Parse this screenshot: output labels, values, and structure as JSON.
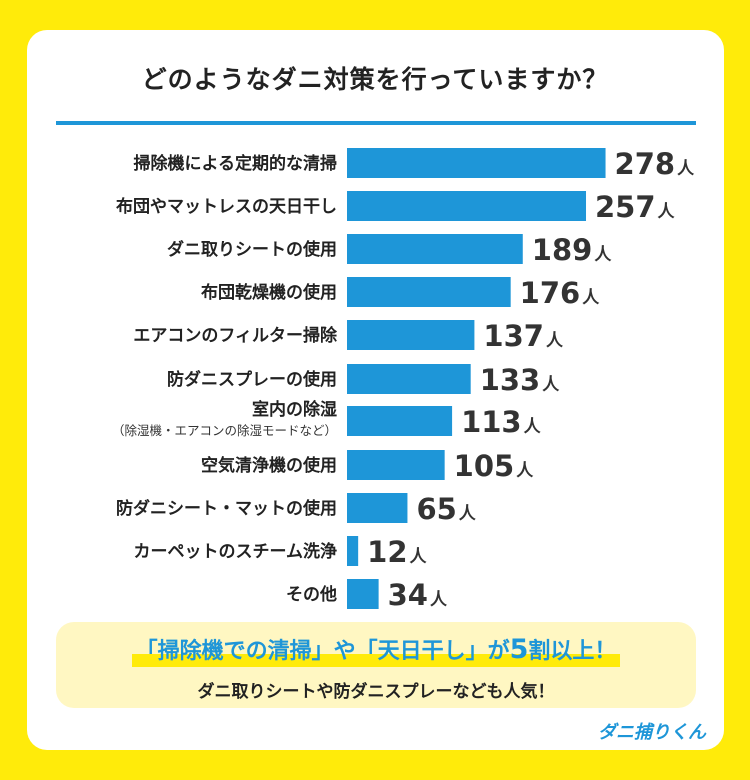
{
  "chart_data": {
    "type": "bar",
    "orientation": "horizontal",
    "title": "どのようなダニ対策を行っていますか？",
    "unit": "人",
    "categories": [
      {
        "label": "掃除機による定期的な清掃",
        "sublabel": ""
      },
      {
        "label": "布団やマットレスの天日干し",
        "sublabel": ""
      },
      {
        "label": "ダニ取りシートの使用",
        "sublabel": ""
      },
      {
        "label": "布団乾燥機の使用",
        "sublabel": ""
      },
      {
        "label": "エアコンのフィルター掃除",
        "sublabel": ""
      },
      {
        "label": "防ダニスプレーの使用",
        "sublabel": ""
      },
      {
        "label": "室内の除湿",
        "sublabel": "（除湿機・エアコンの除湿モードなど）"
      },
      {
        "label": "空気清浄機の使用",
        "sublabel": ""
      },
      {
        "label": "防ダニシート・マットの使用",
        "sublabel": ""
      },
      {
        "label": "カーペットのスチーム洗浄",
        "sublabel": ""
      },
      {
        "label": "その他",
        "sublabel": ""
      }
    ],
    "values": [
      278,
      257,
      189,
      176,
      137,
      133,
      113,
      105,
      65,
      12,
      34
    ],
    "bar_color": "#1E96D8"
  },
  "summary": {
    "highlight_pre": "「掃除機での清掃」や「天日干し」が",
    "highlight_num": "5",
    "highlight_post": "割以上！",
    "subtext": "ダニ取りシートや防ダニスプレーなども人気！"
  },
  "brand": "ダニ捕りくん",
  "colors": {
    "background": "#FFEB0A",
    "accent": "#1E96D8",
    "highlight": "#FFEB0A",
    "summary_bg": "#FFF7C2"
  }
}
